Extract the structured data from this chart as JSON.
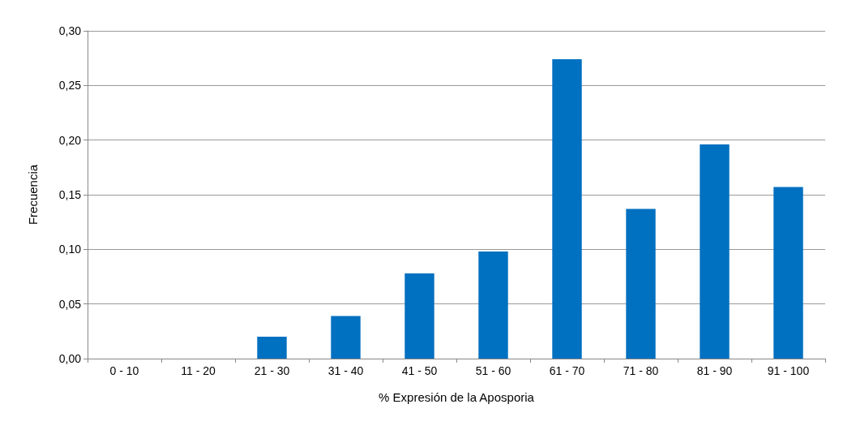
{
  "chart_data": {
    "type": "bar",
    "xlabel": "% Expresión de la Aposporia",
    "ylabel": "Frecuencia",
    "categories": [
      "0 - 10",
      "11 - 20",
      "21 - 30",
      "31 - 40",
      "41 - 50",
      "51 - 60",
      "61 - 70",
      "71 - 80",
      "81 - 90",
      "91 - 100"
    ],
    "values": [
      0,
      0,
      0.02,
      0.039,
      0.078,
      0.098,
      0.274,
      0.137,
      0.196,
      0.157
    ],
    "color": "#0070c0",
    "ylim": [
      0,
      0.3
    ],
    "yticks": [
      {
        "value": 0,
        "label": "0,00"
      },
      {
        "value": 0.05,
        "label": "0,05"
      },
      {
        "value": 0.1,
        "label": "0,10"
      },
      {
        "value": 0.15,
        "label": "0,15"
      },
      {
        "value": 0.2,
        "label": "0,20"
      },
      {
        "value": 0.25,
        "label": "0,25"
      },
      {
        "value": 0.3,
        "label": "0,30"
      }
    ],
    "grid": "y"
  }
}
